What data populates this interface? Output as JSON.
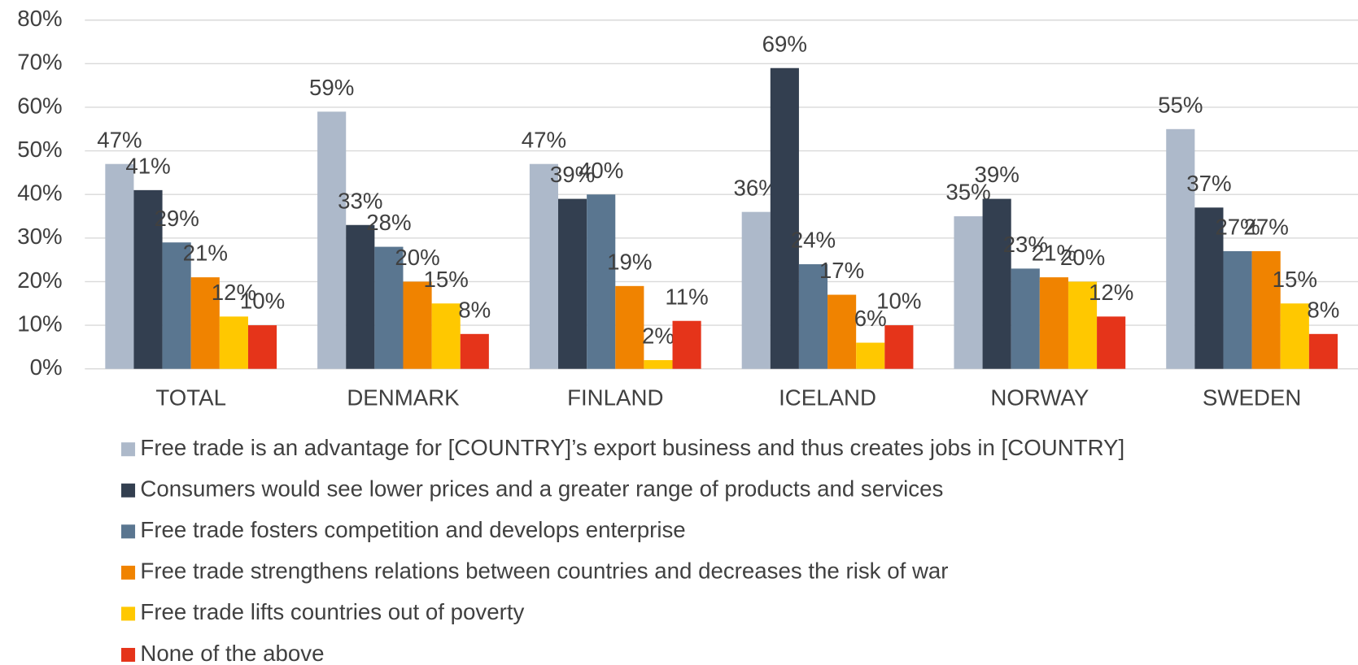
{
  "chart_data": {
    "type": "bar",
    "categories": [
      "TOTAL",
      "DENMARK",
      "FINLAND",
      "ICELAND",
      "NORWAY",
      "SWEDEN"
    ],
    "ylim": [
      0,
      80
    ],
    "yticks": [
      {
        "value": 0,
        "label": "0%"
      },
      {
        "value": 10,
        "label": "10%"
      },
      {
        "value": 20,
        "label": "20%"
      },
      {
        "value": 30,
        "label": "30%"
      },
      {
        "value": 40,
        "label": "40%"
      },
      {
        "value": 50,
        "label": "50%"
      },
      {
        "value": 60,
        "label": "60%"
      },
      {
        "value": 70,
        "label": "70%"
      },
      {
        "value": 80,
        "label": "80%"
      }
    ],
    "grid": true,
    "legend": "bottom",
    "series": [
      {
        "name": "Free trade is an advantage for [COUNTRY]’s export business and thus creates jobs in [COUNTRY]",
        "color": "#adb9ca",
        "values": [
          47,
          59,
          47,
          36,
          35,
          55
        ],
        "value_labels": [
          "47%",
          "59%",
          "47%",
          "36%",
          "35%",
          "55%"
        ]
      },
      {
        "name": "Consumers would see lower prices and a greater range of products and services",
        "color": "#333f50",
        "values": [
          41,
          33,
          39,
          69,
          39,
          37
        ],
        "value_labels": [
          "41%",
          "33%",
          "39%",
          "69%",
          "39%",
          "37%"
        ]
      },
      {
        "name": "Free trade fosters competition and develops enterprise",
        "color": "#5a7690",
        "values": [
          29,
          28,
          40,
          24,
          23,
          27
        ],
        "value_labels": [
          "29%",
          "28%",
          "40%",
          "24%",
          "23%",
          "27%"
        ]
      },
      {
        "name": "Free trade strengthens relations between countries and decreases the risk of war",
        "color": "#f08300",
        "values": [
          21,
          20,
          19,
          17,
          21,
          27
        ],
        "value_labels": [
          "21%",
          "20%",
          "19%",
          "17%",
          "21%",
          "27%"
        ]
      },
      {
        "name": "Free trade lifts countries out of poverty",
        "color": "#ffc800",
        "values": [
          12,
          15,
          2,
          6,
          20,
          15
        ],
        "value_labels": [
          "12%",
          "15%",
          "2%",
          "6%",
          "20%",
          "15%"
        ]
      },
      {
        "name": "None of the above",
        "color": "#e5341a",
        "values": [
          10,
          8,
          11,
          10,
          12,
          8
        ],
        "value_labels": [
          "10%",
          "8%",
          "11%",
          "10%",
          "12%",
          "8%"
        ]
      }
    ]
  }
}
